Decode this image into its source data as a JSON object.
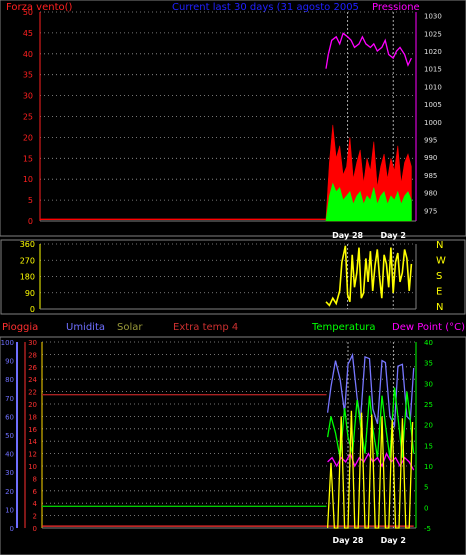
{
  "title": "Current last 30 days (31 agosto 2005",
  "chart_data": [
    {
      "id": "wind-pressure",
      "type": "line",
      "left_title": "Forza vento()",
      "right_title": "Pressione",
      "left_axis": {
        "range": [
          0,
          50
        ],
        "ticks": [
          0,
          5,
          10,
          15,
          20,
          25,
          30,
          35,
          40,
          45,
          50
        ],
        "color": "#ff2020"
      },
      "right_axis": {
        "range": [
          972,
          1031
        ],
        "ticks": [
          975,
          980,
          985,
          990,
          995,
          1000,
          1005,
          1010,
          1015,
          1020,
          1025,
          1030
        ],
        "color": "#ff00ff"
      },
      "x_labels": [
        {
          "text": "Day 28",
          "day": 28
        },
        {
          "text": "Day 2",
          "day": 32
        }
      ],
      "x_range": [
        1,
        34
      ],
      "series": [
        {
          "key": "gust",
          "color": "#ff0000",
          "x": [
            26.1,
            26.4,
            26.7,
            27.0,
            27.3,
            27.6,
            27.9,
            28.2,
            28.5,
            28.8,
            29.1,
            29.4,
            29.7,
            30.0,
            30.3,
            30.6,
            30.9,
            31.2,
            31.5,
            31.8,
            32.1,
            32.4,
            32.7,
            33.0,
            33.3,
            33.6
          ],
          "y": [
            0.5,
            14,
            23,
            15,
            18,
            11,
            13,
            20,
            10,
            14,
            17,
            9,
            15,
            12,
            19,
            8,
            13,
            16,
            10,
            15,
            12,
            18,
            9,
            14,
            16,
            13
          ]
        },
        {
          "key": "avg",
          "color": "#00ff00",
          "x": [
            26.1,
            26.4,
            26.7,
            27.0,
            27.3,
            27.6,
            27.9,
            28.2,
            28.5,
            28.8,
            29.1,
            29.4,
            29.7,
            30.0,
            30.3,
            30.6,
            30.9,
            31.2,
            31.5,
            31.8,
            32.1,
            32.4,
            32.7,
            33.0,
            33.3,
            33.6
          ],
          "y": [
            0.2,
            6,
            9,
            7,
            8,
            5,
            6,
            7,
            4,
            6,
            7,
            4,
            6,
            5,
            8,
            4,
            6,
            7,
            4,
            6,
            5,
            7,
            4,
            6,
            7,
            5
          ]
        },
        {
          "key": "pressure",
          "color": "#ff00ff",
          "axis": "right",
          "x": [
            26.1,
            26.3,
            26.6,
            27.0,
            27.3,
            27.6,
            28.0,
            28.3,
            28.6,
            29.0,
            29.3,
            29.6,
            30.0,
            30.3,
            30.6,
            31.0,
            31.3,
            31.6,
            32.0,
            32.3,
            32.6,
            33.0,
            33.3,
            33.6
          ],
          "y": [
            1015,
            1019,
            1023,
            1024,
            1022,
            1025,
            1024,
            1023,
            1021,
            1022,
            1024,
            1022,
            1021,
            1022,
            1020,
            1021,
            1023,
            1019,
            1018,
            1020,
            1021,
            1019,
            1016,
            1018
          ]
        },
        {
          "key": "low",
          "color": "#ff0000",
          "x": [
            1,
            26.1
          ],
          "y": [
            0.4,
            0.4
          ]
        }
      ]
    },
    {
      "id": "wind-direction",
      "type": "line",
      "left_axis": {
        "range": [
          0,
          360
        ],
        "ticks": [
          0,
          90,
          180,
          270,
          360
        ],
        "color": "#ffff00"
      },
      "right_labels": [
        "N",
        "W",
        "S",
        "E",
        "N"
      ],
      "x_range": [
        1,
        34
      ],
      "series": [
        {
          "key": "direction",
          "color": "#ffff00",
          "x": [
            26.1,
            26.4,
            26.7,
            27.0,
            27.3,
            27.5,
            27.8,
            28.0,
            28.2,
            28.4,
            28.6,
            28.8,
            29.0,
            29.2,
            29.4,
            29.6,
            29.8,
            30.0,
            30.2,
            30.4,
            30.6,
            30.8,
            31.0,
            31.2,
            31.4,
            31.6,
            31.8,
            32.0,
            32.2,
            32.4,
            32.6,
            32.8,
            33.0,
            33.2,
            33.4,
            33.6
          ],
          "y": [
            40,
            20,
            60,
            30,
            100,
            260,
            350,
            80,
            40,
            300,
            120,
            200,
            340,
            60,
            90,
            280,
            150,
            320,
            100,
            240,
            330,
            180,
            60,
            300,
            250,
            120,
            340,
            90,
            260,
            310,
            150,
            200,
            330,
            280,
            100,
            250
          ]
        }
      ]
    },
    {
      "id": "weather-multi",
      "type": "line",
      "legend": [
        {
          "text": "Pioggia",
          "color": "#ff3030"
        },
        {
          "text": "Umidita",
          "color": "#6f6fff"
        },
        {
          "text": "Solar",
          "color": "#9a9a3a"
        },
        {
          "text": "Extra temp 4",
          "color": "#cc3030"
        },
        {
          "text": "Temperatura",
          "color": "#00ff00"
        },
        {
          "text": "Dew Point (°C)",
          "color": "#ff00ff"
        }
      ],
      "left_axis_outer": {
        "range": [
          0,
          100
        ],
        "ticks": [
          0,
          10,
          20,
          30,
          40,
          50,
          60,
          70,
          80,
          90,
          100
        ],
        "color": "#6f6fff"
      },
      "left_axis_inner": {
        "range": [
          0,
          30
        ],
        "ticks": [
          0,
          2,
          4,
          6,
          8,
          10,
          12,
          14,
          16,
          18,
          20,
          22,
          24,
          26,
          28,
          30
        ],
        "color": "#ff3030"
      },
      "right_axis": {
        "range": [
          -5,
          40
        ],
        "ticks": [
          -5,
          0,
          5,
          10,
          15,
          20,
          25,
          30,
          35,
          40
        ],
        "color": "#00ff00"
      },
      "x_labels": [
        {
          "text": "Day 28",
          "day": 28
        },
        {
          "text": "Day 2",
          "day": 32
        }
      ],
      "x_range": [
        1,
        34
      ],
      "series": [
        {
          "key": "extra-temp-4",
          "color": "#aa2222",
          "axis": "inner",
          "x": [
            1,
            26.1
          ],
          "y": [
            21.5,
            21.5
          ]
        },
        {
          "key": "solar-baseline",
          "color": "#00cc00",
          "axis": "inner",
          "x": [
            1,
            26.1
          ],
          "y": [
            3.5,
            3.5
          ]
        },
        {
          "key": "rain-baseline",
          "color": "#ff3030",
          "axis": "inner",
          "x": [
            1,
            26.1,
            33.8
          ],
          "y": [
            0.3,
            0.3,
            0.3
          ]
        },
        {
          "key": "umidita",
          "color": "#7777ff",
          "axis": "outer",
          "x": [
            26.2,
            26.5,
            26.9,
            27.3,
            27.7,
            28.0,
            28.4,
            28.8,
            29.1,
            29.5,
            29.9,
            30.2,
            30.6,
            31.0,
            31.3,
            31.7,
            32.1,
            32.4,
            32.8,
            33.2,
            33.5,
            33.8
          ],
          "y": [
            62,
            76,
            90,
            80,
            62,
            88,
            93,
            70,
            58,
            92,
            91,
            64,
            56,
            90,
            89,
            60,
            55,
            87,
            88,
            60,
            58,
            86
          ]
        },
        {
          "key": "temperatura",
          "color": "#00ff00",
          "axis": "right",
          "x": [
            26.2,
            26.5,
            26.9,
            27.3,
            27.7,
            28.0,
            28.4,
            28.8,
            29.1,
            29.5,
            29.9,
            30.2,
            30.6,
            31.0,
            31.3,
            31.7,
            32.1,
            32.4,
            32.8,
            33.2,
            33.5,
            33.8
          ],
          "y": [
            17,
            22,
            18,
            12,
            24,
            17,
            13,
            26,
            20,
            13,
            27,
            19,
            12,
            27,
            20,
            12,
            29,
            22,
            12,
            28,
            21,
            13
          ]
        },
        {
          "key": "dew-point",
          "color": "#ff00ff",
          "axis": "right",
          "x": [
            26.2,
            26.6,
            27.0,
            27.4,
            27.8,
            28.2,
            28.6,
            29.0,
            29.4,
            29.8,
            30.2,
            30.6,
            31.0,
            31.4,
            31.8,
            32.2,
            32.6,
            33.0,
            33.4,
            33.8
          ],
          "y": [
            11,
            12,
            10,
            12,
            11,
            13,
            10,
            12,
            11,
            13,
            11,
            12,
            10,
            13,
            11,
            12,
            10,
            12,
            11,
            9
          ]
        },
        {
          "key": "solar",
          "color": "#ffff00",
          "axis": "outer",
          "x": [
            26.2,
            26.5,
            26.8,
            27.1,
            27.4,
            27.7,
            28.0,
            28.3,
            28.6,
            28.9,
            29.2,
            29.5,
            29.8,
            30.1,
            30.4,
            30.7,
            31.0,
            31.3,
            31.6,
            31.9,
            32.2,
            32.5,
            32.8,
            33.1,
            33.4,
            33.7
          ],
          "y": [
            0,
            35,
            0,
            0,
            60,
            0,
            0,
            63,
            0,
            0,
            62,
            0,
            0,
            61,
            0,
            0,
            60,
            0,
            0,
            58,
            0,
            0,
            59,
            0,
            0,
            57
          ]
        }
      ]
    }
  ]
}
